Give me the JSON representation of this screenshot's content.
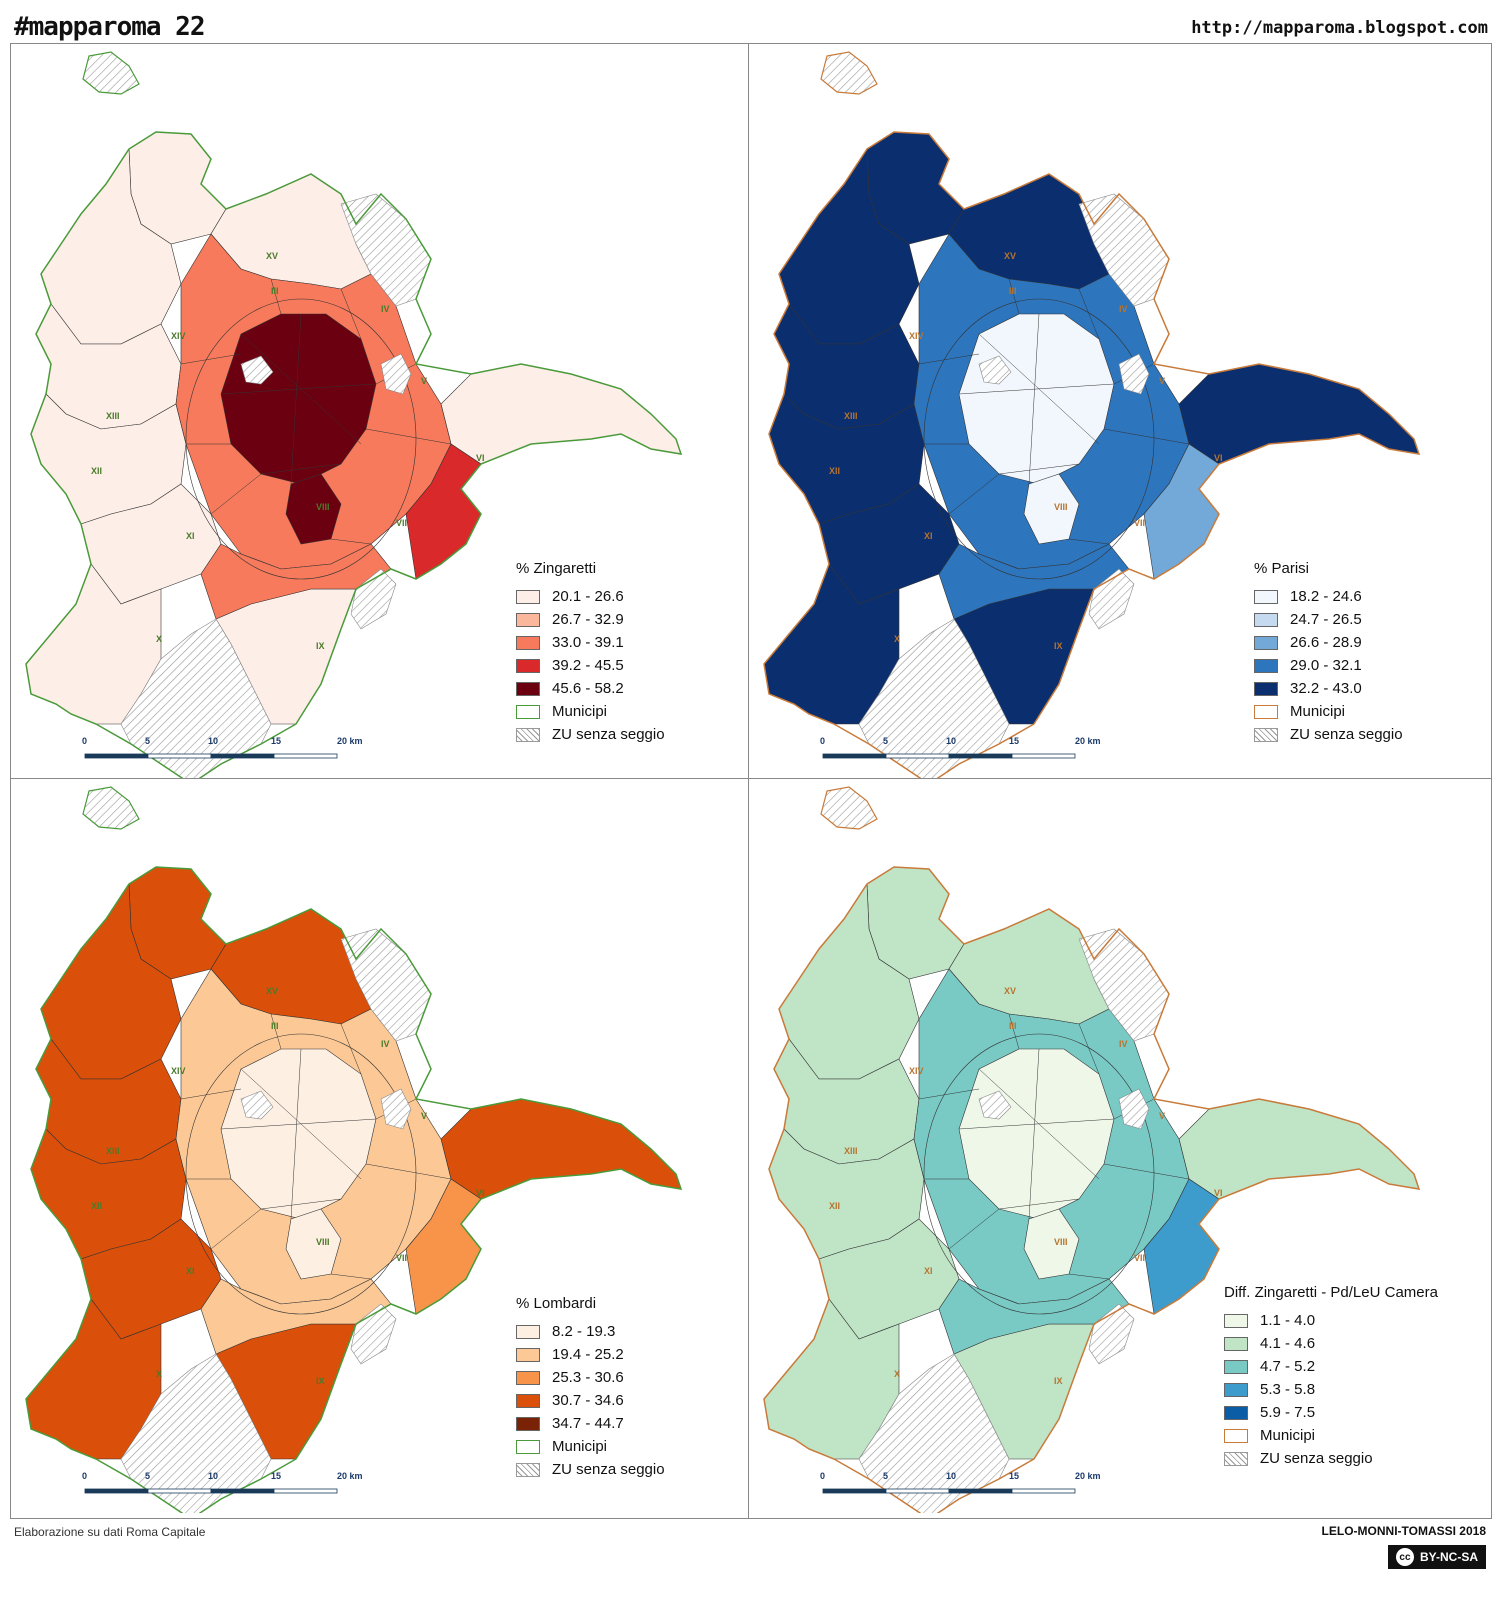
{
  "header": {
    "title": "#mapparoma 22",
    "url": "http://mapparoma.blogspot.com"
  },
  "footer": {
    "source": "Elaborazione su dati Roma Capitale",
    "credit": "LELO-MONNI-TOMASSI 2018",
    "license": "BY-NC-SA",
    "license_logo": "cc"
  },
  "common_legend": {
    "municipi": "Municipi",
    "hatch": "ZU senza seggio"
  },
  "scale_bar": {
    "labels": [
      "0",
      "5",
      "10",
      "15",
      "20 km"
    ]
  },
  "municipi_labels": [
    "XIV",
    "XIII",
    "XII",
    "XI",
    "X",
    "IX",
    "VIII",
    "VII",
    "VI",
    "V",
    "IV",
    "III",
    "XV"
  ],
  "panels": [
    {
      "legend_title": "% Zingaretti",
      "classes": [
        "20.1 - 26.6",
        "26.7 - 32.9",
        "33.0 - 39.1",
        "39.2 - 45.5",
        "45.6 - 58.2"
      ],
      "colors": [
        "#fdeee8",
        "#fbb79c",
        "#f67a5b",
        "#d9292b",
        "#6b0010"
      ],
      "boundary_color": "#4a9a3a",
      "outer_class": 0,
      "center_class": 4,
      "mid_class": 3
    },
    {
      "legend_title": "% Parisi",
      "classes": [
        "18.2 - 24.6",
        "24.7 - 26.5",
        "26.6 - 28.9",
        "29.0 - 32.1",
        "32.2 - 43.0"
      ],
      "colors": [
        "#f2f7fd",
        "#c5d9ef",
        "#72a9d8",
        "#2d75bd",
        "#0a2e6e"
      ],
      "boundary_color": "#c87a3a",
      "outer_class": 4,
      "center_class": 0,
      "mid_class": 2
    },
    {
      "legend_title": "% Lombardi",
      "classes": [
        "8.2 - 19.3",
        "19.4 - 25.2",
        "25.3 - 30.6",
        "30.7 - 34.6",
        "34.7 - 44.7"
      ],
      "colors": [
        "#fdf0e3",
        "#fcc996",
        "#f7944a",
        "#da4f0a",
        "#7a2206"
      ],
      "boundary_color": "#4a9a3a",
      "outer_class": 3,
      "center_class": 0,
      "mid_class": 2
    },
    {
      "legend_title": "Diff. Zingaretti - Pd/LeU Camera",
      "classes": [
        "1.1 - 4.0",
        "4.1 - 4.6",
        "4.7 - 5.2",
        "5.3 - 5.8",
        "5.9 - 7.5"
      ],
      "colors": [
        "#eef7e8",
        "#bfe4c6",
        "#79c9c4",
        "#3d9ccb",
        "#0b5ea6"
      ],
      "boundary_color": "#c87a3a",
      "outer_class": 1,
      "center_class": 0,
      "mid_class": 3
    }
  ]
}
